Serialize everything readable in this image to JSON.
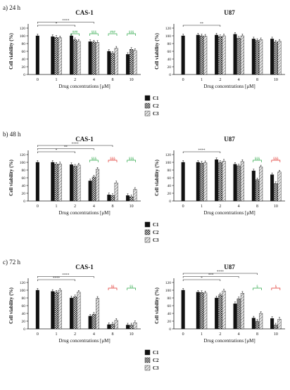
{
  "chart_data": [
    {
      "type": "bar",
      "panel": "a) 24 h",
      "title": "CAS-1",
      "ylabel": "Cell viability (%)",
      "xlabel": "Drug concentrations [μM]",
      "ylim": [
        0,
        120
      ],
      "categories": [
        "0",
        "1",
        "2",
        "4",
        "8",
        "10"
      ],
      "series": [
        {
          "name": "C1",
          "values": [
            100,
            98,
            100,
            85,
            60,
            52
          ]
        },
        {
          "name": "C2",
          "values": [
            null,
            96,
            90,
            84,
            55,
            65
          ]
        },
        {
          "name": "C3",
          "values": [
            null,
            95,
            86,
            83,
            68,
            62
          ]
        }
      ],
      "annotations": [
        "*",
        "****",
        "###",
        "§§§",
        "###",
        "§§§"
      ]
    },
    {
      "type": "bar",
      "title": "U87",
      "ylabel": "Cell viability (%)",
      "xlabel": "Drug concentrations [μM]",
      "ylim": [
        0,
        120
      ],
      "categories": [
        "0",
        "1",
        "2",
        "4",
        "8",
        "10"
      ],
      "series": [
        {
          "name": "C1",
          "values": [
            100,
            102,
            102,
            104,
            92,
            92
          ]
        },
        {
          "name": "C2",
          "values": [
            null,
            100,
            98,
            94,
            88,
            84
          ]
        },
        {
          "name": "C3",
          "values": [
            null,
            99,
            100,
            100,
            90,
            86
          ]
        }
      ],
      "annotations": [
        "**"
      ]
    },
    {
      "type": "bar",
      "panel": "b) 48 h",
      "title": "CAS-1",
      "ylabel": "Cell viability (%)",
      "xlabel": "Drug concentrations [μM]",
      "ylim": [
        0,
        120
      ],
      "categories": [
        "0",
        "1",
        "2",
        "4",
        "8",
        "10"
      ],
      "series": [
        {
          "name": "C1",
          "values": [
            100,
            100,
            94,
            52,
            16,
            14
          ]
        },
        {
          "name": "C2",
          "values": [
            null,
            95,
            90,
            62,
            14,
            11
          ]
        },
        {
          "name": "C3",
          "values": [
            null,
            96,
            93,
            82,
            47,
            30
          ]
        }
      ],
      "annotations": [
        "*",
        "**",
        "****",
        "§§§",
        "§§§",
        "§§§"
      ]
    },
    {
      "type": "bar",
      "title": "U87",
      "ylabel": "Cell viability (%)",
      "xlabel": "Drug concentrations [μM]",
      "ylim": [
        0,
        120
      ],
      "categories": [
        "0",
        "1",
        "2",
        "4",
        "8",
        "10"
      ],
      "series": [
        {
          "name": "C1",
          "values": [
            100,
            100,
            107,
            95,
            78,
            68
          ]
        },
        {
          "name": "C2",
          "values": [
            null,
            98,
            100,
            91,
            55,
            45
          ]
        },
        {
          "name": "C3",
          "values": [
            null,
            99,
            103,
            102,
            88,
            75
          ]
        }
      ],
      "annotations": [
        "****",
        "§§§",
        "§§§"
      ]
    },
    {
      "type": "bar",
      "panel": "c) 72 h",
      "title": "CAS-1",
      "ylabel": "Cell viability (%)",
      "xlabel": "Drug concentrations [μM]",
      "ylim": [
        0,
        120
      ],
      "categories": [
        "0",
        "1",
        "2",
        "4",
        "8",
        "10"
      ],
      "series": [
        {
          "name": "C1",
          "values": [
            100,
            97,
            80,
            33,
            11,
            10
          ]
        },
        {
          "name": "C2",
          "values": [
            null,
            95,
            83,
            38,
            12,
            10
          ]
        },
        {
          "name": "C3",
          "values": [
            null,
            100,
            95,
            79,
            22,
            16
          ]
        }
      ],
      "annotations": [
        "****",
        "****",
        "§§",
        "§§"
      ]
    },
    {
      "type": "bar",
      "title": "U87",
      "ylabel": "Cell viability (%)",
      "xlabel": "Drug concentrations [μM]",
      "ylim": [
        0,
        120
      ],
      "categories": [
        "0",
        "1",
        "2",
        "4",
        "8",
        "10"
      ],
      "series": [
        {
          "name": "C1",
          "values": [
            100,
            95,
            80,
            65,
            28,
            27
          ]
        },
        {
          "name": "C2",
          "values": [
            null,
            94,
            88,
            78,
            20,
            10
          ]
        },
        {
          "name": "C3",
          "values": [
            null,
            93,
            98,
            92,
            40,
            25
          ]
        }
      ],
      "annotations": [
        "*",
        "***",
        "****",
        "§",
        "§"
      ]
    }
  ],
  "legend": [
    "C1",
    "C2",
    "C3"
  ],
  "colors": {
    "c1": "#111111",
    "c2": "#9a9a9a",
    "c3": "#d8d8d8",
    "significance_black": "#222222",
    "significance_red": "#e0302a",
    "significance_green": "#2ea84a"
  }
}
